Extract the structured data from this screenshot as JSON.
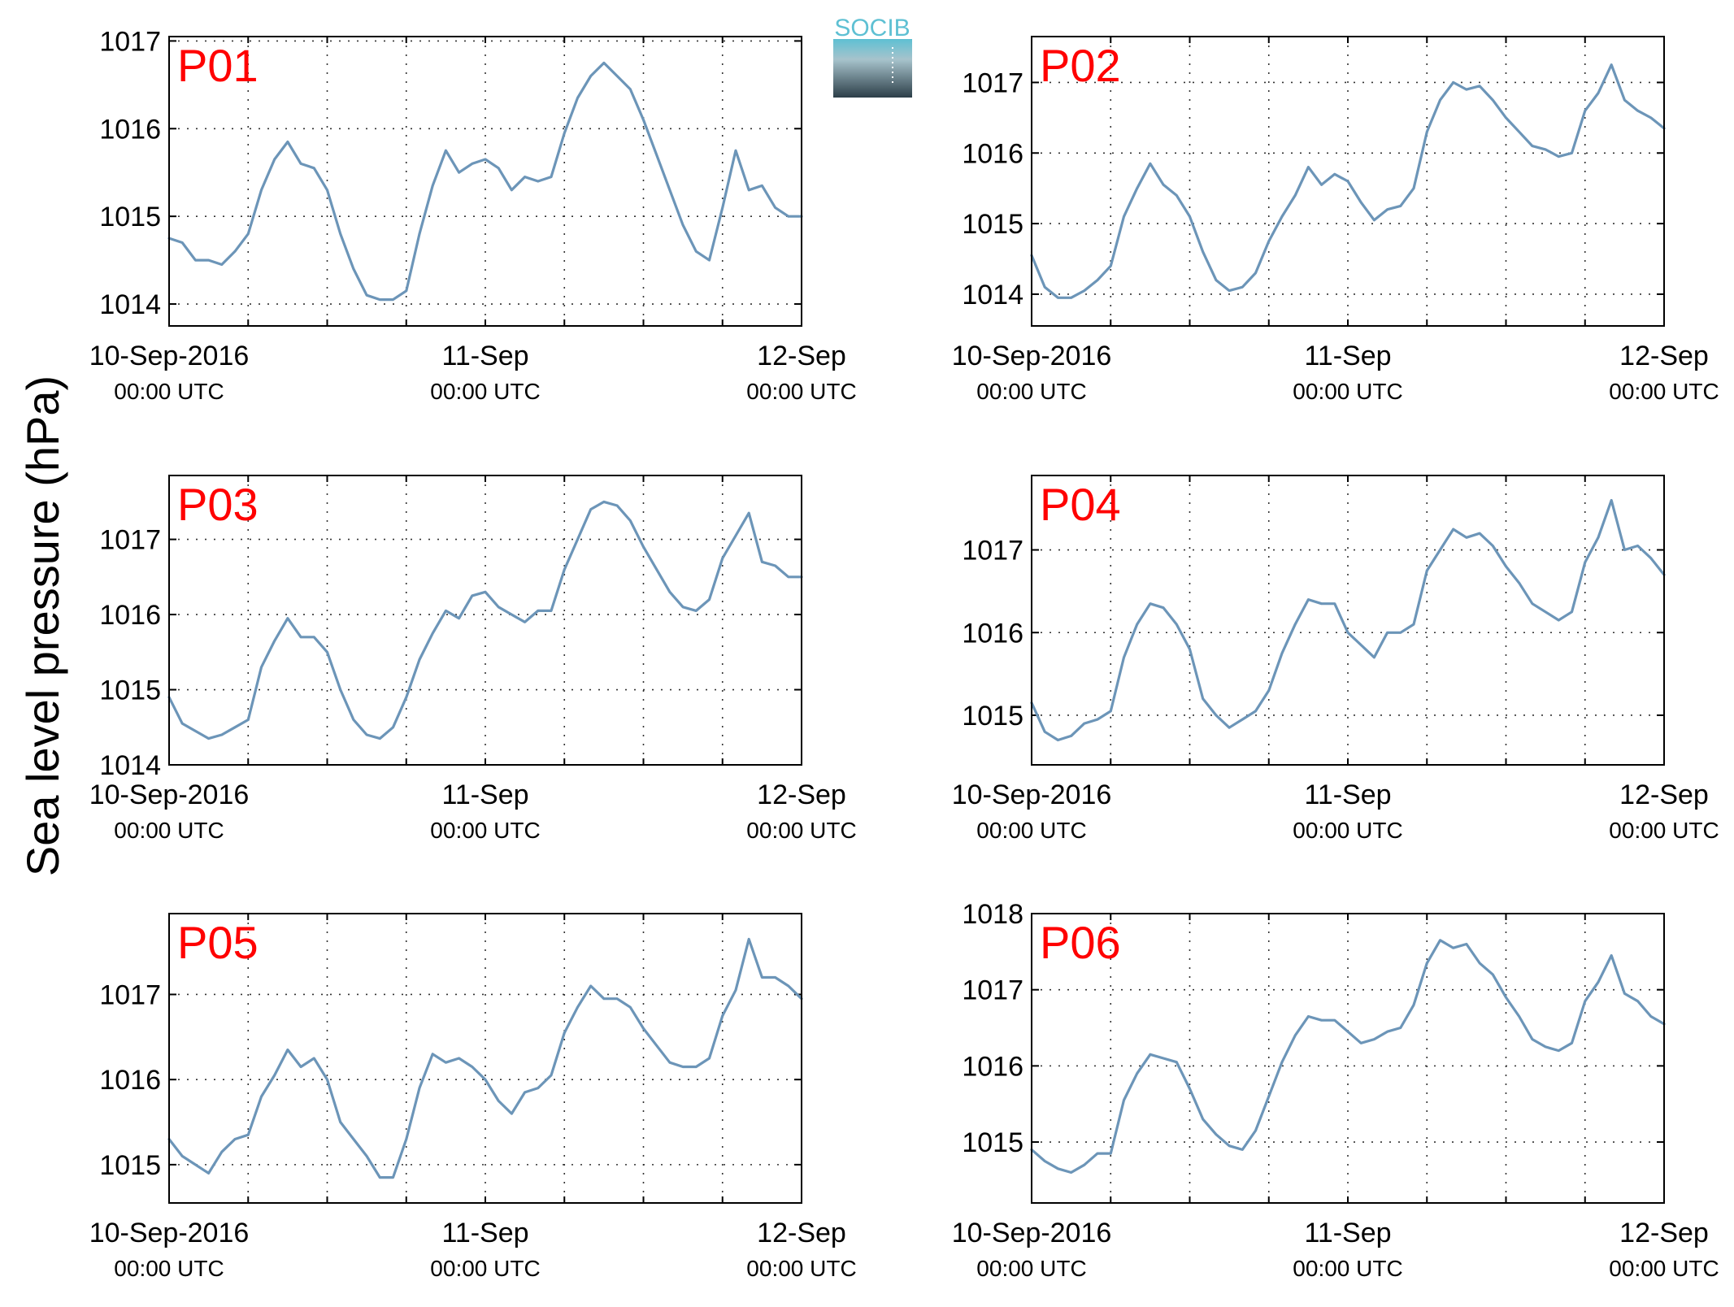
{
  "figure": {
    "ylabel": "Sea level pressure (hPa)",
    "logo_text": "SOCIB"
  },
  "colors": {
    "series": "#6c95b8",
    "panel_label": "#ff0000",
    "logo_top": "#5ec0d3",
    "logo_bottom": "#2c3e48"
  },
  "chart_data": [
    {
      "type": "line",
      "panel_label": "P01",
      "x_tick_labels": [
        {
          "main": "10-Sep-2016",
          "sub": "00:00 UTC"
        },
        {
          "main": "11-Sep",
          "sub": "00:00 UTC"
        },
        {
          "main": "12-Sep",
          "sub": "00:00 UTC"
        }
      ],
      "xlim_hours": [
        0,
        48
      ],
      "ylim": [
        1013.75,
        1017.05
      ],
      "yticks": [
        1014,
        1015,
        1016,
        1017
      ],
      "x_hours": [
        0,
        1,
        2,
        3,
        4,
        5,
        6,
        7,
        8,
        9,
        10,
        11,
        12,
        13,
        14,
        15,
        16,
        17,
        18,
        19,
        20,
        21,
        22,
        23,
        24,
        25,
        26,
        27,
        28,
        29,
        30,
        31,
        32,
        33,
        34,
        35,
        36,
        37,
        38,
        39,
        40,
        41,
        42,
        43,
        44,
        45,
        46,
        47,
        48
      ],
      "values": [
        1014.75,
        1014.7,
        1014.5,
        1014.5,
        1014.45,
        1014.6,
        1014.8,
        1015.3,
        1015.65,
        1015.85,
        1015.6,
        1015.55,
        1015.3,
        1014.8,
        1014.4,
        1014.1,
        1014.05,
        1014.05,
        1014.15,
        1014.8,
        1015.35,
        1015.75,
        1015.5,
        1015.6,
        1015.65,
        1015.55,
        1015.3,
        1015.45,
        1015.4,
        1015.45,
        1015.95,
        1016.35,
        1016.6,
        1016.75,
        1016.6,
        1016.45,
        1016.1,
        1015.7,
        1015.3,
        1014.9,
        1014.6,
        1014.5,
        1015.1,
        1015.75,
        1015.3,
        1015.35,
        1015.1,
        1015.0,
        1015.0
      ]
    },
    {
      "type": "line",
      "panel_label": "P02",
      "x_tick_labels": [
        {
          "main": "10-Sep-2016",
          "sub": "00:00 UTC"
        },
        {
          "main": "11-Sep",
          "sub": "00:00 UTC"
        },
        {
          "main": "12-Sep",
          "sub": "00:00 UTC"
        }
      ],
      "xlim_hours": [
        0,
        48
      ],
      "ylim": [
        1013.55,
        1017.65
      ],
      "yticks": [
        1014,
        1015,
        1016,
        1017
      ],
      "x_hours": [
        0,
        1,
        2,
        3,
        4,
        5,
        6,
        7,
        8,
        9,
        10,
        11,
        12,
        13,
        14,
        15,
        16,
        17,
        18,
        19,
        20,
        21,
        22,
        23,
        24,
        25,
        26,
        27,
        28,
        29,
        30,
        31,
        32,
        33,
        34,
        35,
        36,
        37,
        38,
        39,
        40,
        41,
        42,
        43,
        44,
        45,
        46,
        47,
        48
      ],
      "values": [
        1014.55,
        1014.1,
        1013.95,
        1013.95,
        1014.05,
        1014.2,
        1014.4,
        1015.1,
        1015.5,
        1015.85,
        1015.55,
        1015.4,
        1015.1,
        1014.6,
        1014.2,
        1014.05,
        1014.1,
        1014.3,
        1014.75,
        1015.1,
        1015.4,
        1015.8,
        1015.55,
        1015.7,
        1015.6,
        1015.3,
        1015.05,
        1015.2,
        1015.25,
        1015.5,
        1016.3,
        1016.75,
        1017.0,
        1016.9,
        1016.95,
        1016.75,
        1016.5,
        1016.3,
        1016.1,
        1016.05,
        1015.95,
        1016.0,
        1016.6,
        1016.85,
        1017.25,
        1016.75,
        1016.6,
        1016.5,
        1016.35
      ]
    },
    {
      "type": "line",
      "panel_label": "P03",
      "x_tick_labels": [
        {
          "main": "10-Sep-2016",
          "sub": "00:00 UTC"
        },
        {
          "main": "11-Sep",
          "sub": "00:00 UTC"
        },
        {
          "main": "12-Sep",
          "sub": "00:00 UTC"
        }
      ],
      "xlim_hours": [
        0,
        48
      ],
      "ylim": [
        1014.0,
        1017.85
      ],
      "yticks": [
        1014,
        1015,
        1016,
        1017
      ],
      "x_hours": [
        0,
        1,
        2,
        3,
        4,
        5,
        6,
        7,
        8,
        9,
        10,
        11,
        12,
        13,
        14,
        15,
        16,
        17,
        18,
        19,
        20,
        21,
        22,
        23,
        24,
        25,
        26,
        27,
        28,
        29,
        30,
        31,
        32,
        33,
        34,
        35,
        36,
        37,
        38,
        39,
        40,
        41,
        42,
        43,
        44,
        45,
        46,
        47,
        48
      ],
      "values": [
        1014.9,
        1014.55,
        1014.45,
        1014.35,
        1014.4,
        1014.5,
        1014.6,
        1015.3,
        1015.65,
        1015.95,
        1015.7,
        1015.7,
        1015.5,
        1015.0,
        1014.6,
        1014.4,
        1014.35,
        1014.5,
        1014.9,
        1015.4,
        1015.75,
        1016.05,
        1015.95,
        1016.25,
        1016.3,
        1016.1,
        1016.0,
        1015.9,
        1016.05,
        1016.05,
        1016.6,
        1017.0,
        1017.4,
        1017.5,
        1017.45,
        1017.25,
        1016.9,
        1016.6,
        1016.3,
        1016.1,
        1016.05,
        1016.2,
        1016.75,
        1017.05,
        1017.35,
        1016.7,
        1016.65,
        1016.5,
        1016.5
      ]
    },
    {
      "type": "line",
      "panel_label": "P04",
      "x_tick_labels": [
        {
          "main": "10-Sep-2016",
          "sub": "00:00 UTC"
        },
        {
          "main": "11-Sep",
          "sub": "00:00 UTC"
        },
        {
          "main": "12-Sep",
          "sub": "00:00 UTC"
        }
      ],
      "xlim_hours": [
        0,
        48
      ],
      "ylim": [
        1014.4,
        1017.9
      ],
      "yticks": [
        1015,
        1016,
        1017
      ],
      "x_hours": [
        0,
        1,
        2,
        3,
        4,
        5,
        6,
        7,
        8,
        9,
        10,
        11,
        12,
        13,
        14,
        15,
        16,
        17,
        18,
        19,
        20,
        21,
        22,
        23,
        24,
        25,
        26,
        27,
        28,
        29,
        30,
        31,
        32,
        33,
        34,
        35,
        36,
        37,
        38,
        39,
        40,
        41,
        42,
        43,
        44,
        45,
        46,
        47,
        48
      ],
      "values": [
        1015.15,
        1014.8,
        1014.7,
        1014.75,
        1014.9,
        1014.95,
        1015.05,
        1015.7,
        1016.1,
        1016.35,
        1016.3,
        1016.1,
        1015.8,
        1015.2,
        1015.0,
        1014.85,
        1014.95,
        1015.05,
        1015.3,
        1015.75,
        1016.1,
        1016.4,
        1016.35,
        1016.35,
        1016.0,
        1015.85,
        1015.7,
        1016.0,
        1016.0,
        1016.1,
        1016.75,
        1017.0,
        1017.25,
        1017.15,
        1017.2,
        1017.05,
        1016.8,
        1016.6,
        1016.35,
        1016.25,
        1016.15,
        1016.25,
        1016.85,
        1017.15,
        1017.6,
        1017.0,
        1017.05,
        1016.9,
        1016.7
      ]
    },
    {
      "type": "line",
      "panel_label": "P05",
      "x_tick_labels": [
        {
          "main": "10-Sep-2016",
          "sub": "00:00 UTC"
        },
        {
          "main": "11-Sep",
          "sub": "00:00 UTC"
        },
        {
          "main": "12-Sep",
          "sub": "00:00 UTC"
        }
      ],
      "xlim_hours": [
        0,
        48
      ],
      "ylim": [
        1014.55,
        1017.95
      ],
      "yticks": [
        1015,
        1016,
        1017
      ],
      "x_hours": [
        0,
        1,
        2,
        3,
        4,
        5,
        6,
        7,
        8,
        9,
        10,
        11,
        12,
        13,
        14,
        15,
        16,
        17,
        18,
        19,
        20,
        21,
        22,
        23,
        24,
        25,
        26,
        27,
        28,
        29,
        30,
        31,
        32,
        33,
        34,
        35,
        36,
        37,
        38,
        39,
        40,
        41,
        42,
        43,
        44,
        45,
        46,
        47,
        48
      ],
      "values": [
        1015.3,
        1015.1,
        1015.0,
        1014.9,
        1015.15,
        1015.3,
        1015.35,
        1015.8,
        1016.05,
        1016.35,
        1016.15,
        1016.25,
        1016.0,
        1015.5,
        1015.3,
        1015.1,
        1014.85,
        1014.85,
        1015.3,
        1015.9,
        1016.3,
        1016.2,
        1016.25,
        1016.15,
        1016.0,
        1015.75,
        1015.6,
        1015.85,
        1015.9,
        1016.05,
        1016.55,
        1016.85,
        1017.1,
        1016.95,
        1016.95,
        1016.85,
        1016.6,
        1016.4,
        1016.2,
        1016.15,
        1016.15,
        1016.25,
        1016.75,
        1017.05,
        1017.65,
        1017.2,
        1017.2,
        1017.1,
        1016.95
      ]
    },
    {
      "type": "line",
      "panel_label": "P06",
      "x_tick_labels": [
        {
          "main": "10-Sep-2016",
          "sub": "00:00 UTC"
        },
        {
          "main": "11-Sep",
          "sub": "00:00 UTC"
        },
        {
          "main": "12-Sep",
          "sub": "00:00 UTC"
        }
      ],
      "xlim_hours": [
        0,
        48
      ],
      "ylim": [
        1014.2,
        1018.0
      ],
      "yticks": [
        1015,
        1016,
        1017,
        1018
      ],
      "x_hours": [
        0,
        1,
        2,
        3,
        4,
        5,
        6,
        7,
        8,
        9,
        10,
        11,
        12,
        13,
        14,
        15,
        16,
        17,
        18,
        19,
        20,
        21,
        22,
        23,
        24,
        25,
        26,
        27,
        28,
        29,
        30,
        31,
        32,
        33,
        34,
        35,
        36,
        37,
        38,
        39,
        40,
        41,
        42,
        43,
        44,
        45,
        46,
        47,
        48
      ],
      "values": [
        1014.9,
        1014.75,
        1014.65,
        1014.6,
        1014.7,
        1014.85,
        1014.85,
        1015.55,
        1015.9,
        1016.15,
        1016.1,
        1016.05,
        1015.7,
        1015.3,
        1015.1,
        1014.95,
        1014.9,
        1015.15,
        1015.6,
        1016.05,
        1016.4,
        1016.65,
        1016.6,
        1016.6,
        1016.45,
        1016.3,
        1016.35,
        1016.45,
        1016.5,
        1016.8,
        1017.35,
        1017.65,
        1017.55,
        1017.6,
        1017.35,
        1017.2,
        1016.9,
        1016.65,
        1016.35,
        1016.25,
        1016.2,
        1016.3,
        1016.85,
        1017.1,
        1017.45,
        1016.95,
        1016.85,
        1016.65,
        1016.55
      ]
    }
  ]
}
